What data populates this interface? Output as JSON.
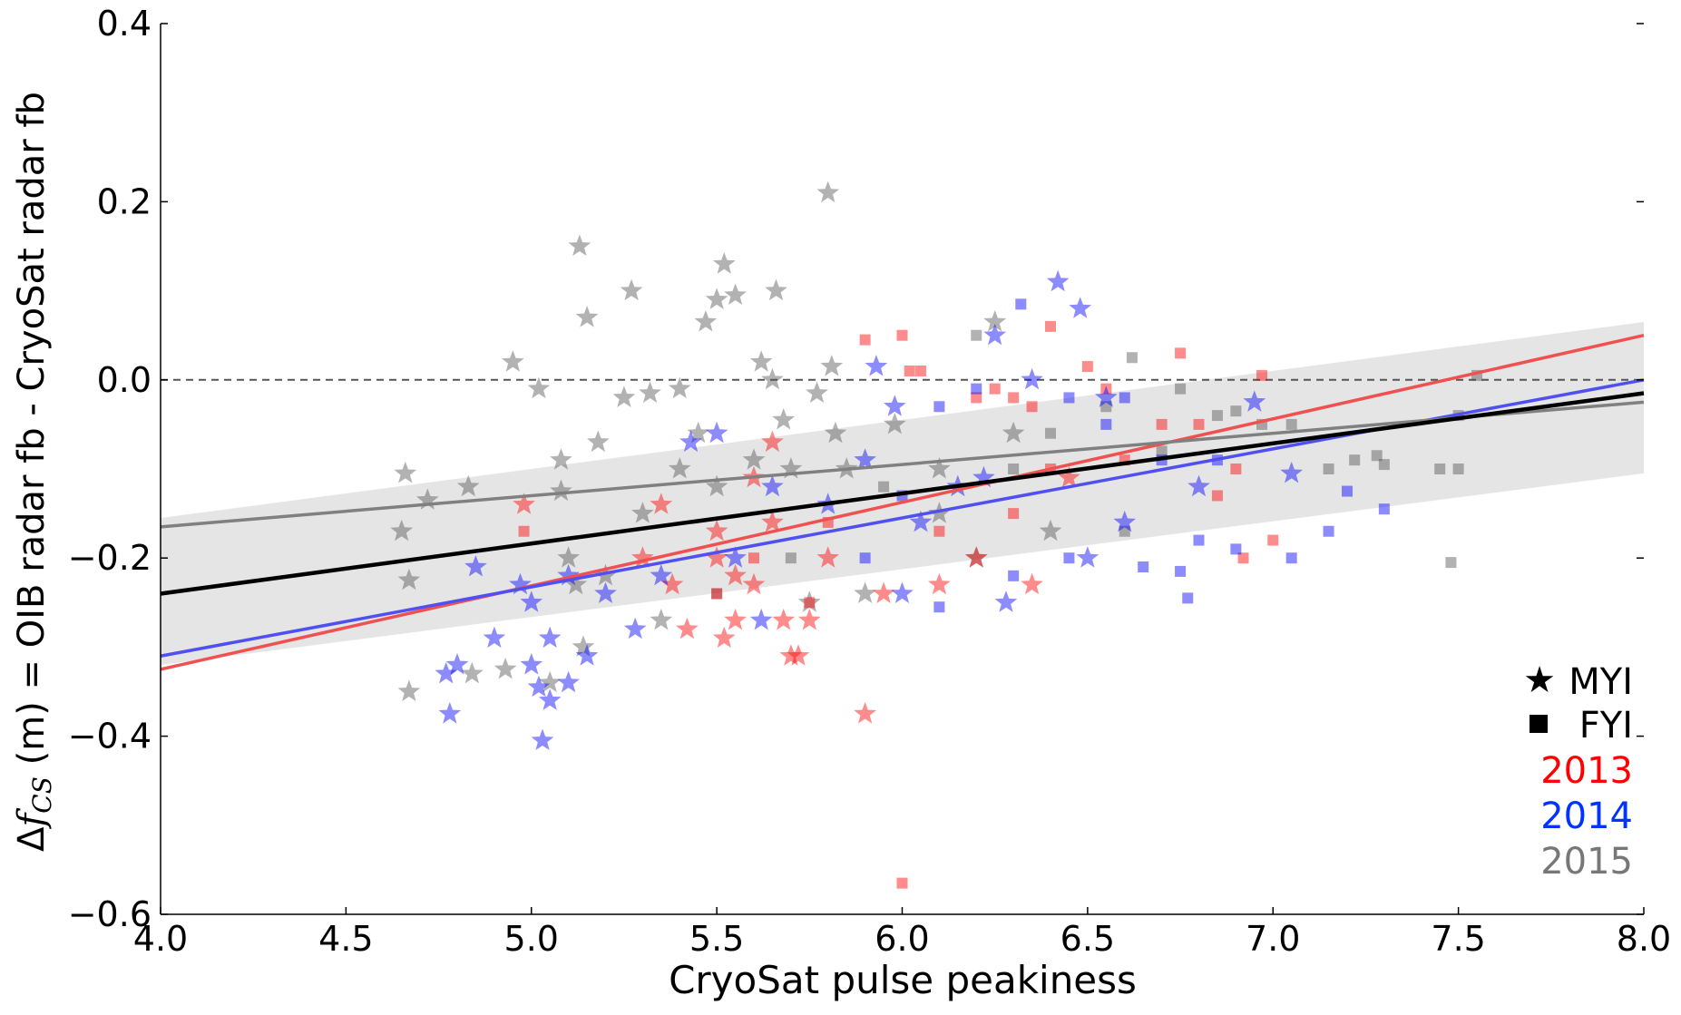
{
  "chart_data": {
    "type": "scatter",
    "title": "",
    "xlabel": "CryoSat pulse peakiness",
    "ylabel_parts": {
      "delta": "Δ",
      "f": "f",
      "sub": "CS",
      "rest": " (m) = OIB radar fb - CryoSat radar fb"
    },
    "xlim": [
      4.0,
      8.0
    ],
    "ylim": [
      -0.6,
      0.4
    ],
    "xticks": [
      "4.0",
      "4.5",
      "5.0",
      "5.5",
      "6.0",
      "6.5",
      "7.0",
      "7.5",
      "8.0"
    ],
    "yticks": [
      "0.4",
      "0.2",
      "0.0",
      "−0.2",
      "−0.4",
      "−0.6"
    ],
    "ytick_values": [
      0.4,
      0.2,
      0.0,
      -0.2,
      -0.4,
      -0.6
    ],
    "grid": false,
    "reference_line": {
      "y": 0.0,
      "style": "dashed"
    },
    "legend": {
      "placement": "bottom-right",
      "markers": [
        {
          "symbol": "star",
          "label": "MYI"
        },
        {
          "symbol": "square",
          "label": "FYI"
        }
      ],
      "years": [
        {
          "label": "2013",
          "color": "#ff0000"
        },
        {
          "label": "2014",
          "color": "#0033ff"
        },
        {
          "label": "2015",
          "color": "#777777"
        }
      ]
    },
    "fits": [
      {
        "group": "2013",
        "color": "#f05050",
        "x": [
          4.0,
          8.0
        ],
        "y": [
          -0.325,
          0.05
        ]
      },
      {
        "group": "2014",
        "color": "#5050f0",
        "x": [
          4.0,
          8.0
        ],
        "y": [
          -0.31,
          0.0
        ]
      },
      {
        "group": "2015",
        "color": "#808080",
        "x": [
          4.0,
          8.0
        ],
        "y": [
          -0.165,
          -0.025
        ]
      },
      {
        "group": "all",
        "color": "#000000",
        "x": [
          4.0,
          8.0
        ],
        "y": [
          -0.24,
          -0.015
        ]
      }
    ],
    "confidence_band": {
      "x": [
        4.0,
        8.0
      ],
      "upper": [
        -0.155,
        0.065
      ],
      "lower": [
        -0.32,
        -0.105
      ],
      "color": "#e0e0e0"
    },
    "series": [
      {
        "year": "2015",
        "ice": "MYI",
        "marker": "star",
        "color": "#555555",
        "points": [
          [
            4.66,
            -0.105
          ],
          [
            4.65,
            -0.17
          ],
          [
            4.67,
            -0.225
          ],
          [
            4.67,
            -0.35
          ],
          [
            4.72,
            -0.135
          ],
          [
            4.83,
            -0.12
          ],
          [
            4.95,
            0.02
          ],
          [
            5.02,
            -0.01
          ],
          [
            4.93,
            -0.325
          ],
          [
            4.84,
            -0.33
          ],
          [
            5.08,
            -0.09
          ],
          [
            5.08,
            -0.125
          ],
          [
            5.1,
            -0.2
          ],
          [
            5.12,
            -0.23
          ],
          [
            5.13,
            0.15
          ],
          [
            5.15,
            0.07
          ],
          [
            5.14,
            -0.3
          ],
          [
            5.18,
            -0.07
          ],
          [
            5.25,
            -0.02
          ],
          [
            5.27,
            0.1
          ],
          [
            5.32,
            -0.015
          ],
          [
            5.35,
            -0.27
          ],
          [
            5.4,
            -0.01
          ],
          [
            5.45,
            -0.06
          ],
          [
            5.47,
            0.065
          ],
          [
            5.52,
            0.13
          ],
          [
            5.5,
            0.09
          ],
          [
            5.55,
            0.095
          ],
          [
            5.62,
            0.02
          ],
          [
            5.65,
            0.0
          ],
          [
            5.66,
            0.1
          ],
          [
            5.68,
            -0.045
          ],
          [
            5.8,
            0.21
          ],
          [
            5.81,
            0.015
          ],
          [
            5.77,
            -0.015
          ],
          [
            5.82,
            -0.06
          ],
          [
            5.85,
            -0.1
          ],
          [
            5.9,
            -0.24
          ],
          [
            5.7,
            -0.1
          ],
          [
            5.6,
            -0.09
          ],
          [
            5.5,
            -0.12
          ],
          [
            5.4,
            -0.1
          ],
          [
            5.3,
            -0.15
          ],
          [
            5.2,
            -0.22
          ],
          [
            5.05,
            -0.34
          ],
          [
            5.98,
            -0.05
          ],
          [
            6.1,
            -0.1
          ],
          [
            6.2,
            -0.2
          ],
          [
            6.25,
            0.065
          ],
          [
            6.3,
            -0.06
          ],
          [
            6.4,
            -0.17
          ],
          [
            6.1,
            -0.15
          ],
          [
            5.75,
            -0.25
          ]
        ]
      },
      {
        "year": "2015",
        "ice": "FYI",
        "marker": "square",
        "color": "#555555",
        "points": [
          [
            6.2,
            0.05
          ],
          [
            6.55,
            -0.03
          ],
          [
            6.62,
            0.025
          ],
          [
            6.75,
            -0.01
          ],
          [
            6.85,
            -0.04
          ],
          [
            6.9,
            -0.035
          ],
          [
            6.97,
            -0.05
          ],
          [
            7.05,
            -0.05
          ],
          [
            7.15,
            -0.1
          ],
          [
            7.22,
            -0.09
          ],
          [
            7.28,
            -0.085
          ],
          [
            7.3,
            -0.095
          ],
          [
            7.45,
            -0.1
          ],
          [
            7.5,
            -0.1
          ],
          [
            7.48,
            -0.205
          ],
          [
            7.5,
            -0.04
          ],
          [
            7.55,
            0.005
          ],
          [
            6.7,
            -0.08
          ],
          [
            6.6,
            -0.17
          ],
          [
            6.3,
            -0.1
          ],
          [
            6.4,
            -0.06
          ],
          [
            5.95,
            -0.12
          ],
          [
            5.7,
            -0.2
          ],
          [
            5.5,
            -0.24
          ]
        ]
      },
      {
        "year": "2013",
        "ice": "MYI",
        "marker": "star",
        "color": "#ff0000",
        "points": [
          [
            4.98,
            -0.14
          ],
          [
            5.3,
            -0.2
          ],
          [
            5.35,
            -0.14
          ],
          [
            5.38,
            -0.23
          ],
          [
            5.42,
            -0.28
          ],
          [
            5.5,
            -0.2
          ],
          [
            5.52,
            -0.29
          ],
          [
            5.55,
            -0.27
          ],
          [
            5.6,
            -0.23
          ],
          [
            5.6,
            -0.11
          ],
          [
            5.65,
            -0.07
          ],
          [
            5.7,
            -0.31
          ],
          [
            5.72,
            -0.31
          ],
          [
            5.75,
            -0.27
          ],
          [
            5.8,
            -0.2
          ],
          [
            5.9,
            -0.375
          ],
          [
            5.95,
            -0.24
          ],
          [
            6.1,
            -0.23
          ],
          [
            6.2,
            -0.2
          ],
          [
            6.35,
            -0.23
          ],
          [
            5.55,
            -0.22
          ],
          [
            5.65,
            -0.16
          ],
          [
            6.45,
            -0.11
          ],
          [
            5.5,
            -0.17
          ],
          [
            5.68,
            -0.27
          ]
        ]
      },
      {
        "year": "2013",
        "ice": "FYI",
        "marker": "square",
        "color": "#ff0000",
        "points": [
          [
            4.98,
            -0.17
          ],
          [
            5.9,
            0.045
          ],
          [
            6.0,
            0.05
          ],
          [
            6.02,
            0.01
          ],
          [
            6.05,
            0.01
          ],
          [
            6.0,
            -0.565
          ],
          [
            6.2,
            -0.02
          ],
          [
            6.25,
            -0.01
          ],
          [
            6.3,
            -0.02
          ],
          [
            6.35,
            -0.03
          ],
          [
            6.4,
            0.06
          ],
          [
            6.5,
            0.015
          ],
          [
            6.55,
            -0.01
          ],
          [
            6.75,
            0.03
          ],
          [
            6.7,
            -0.05
          ],
          [
            6.8,
            -0.05
          ],
          [
            6.85,
            -0.13
          ],
          [
            6.92,
            -0.2
          ],
          [
            6.97,
            0.005
          ],
          [
            7.0,
            -0.18
          ],
          [
            6.6,
            -0.09
          ],
          [
            6.4,
            -0.1
          ],
          [
            5.8,
            -0.16
          ],
          [
            5.6,
            -0.2
          ],
          [
            5.5,
            -0.24
          ],
          [
            5.75,
            -0.25
          ],
          [
            6.1,
            -0.17
          ],
          [
            6.3,
            -0.15
          ],
          [
            6.9,
            -0.1
          ]
        ]
      },
      {
        "year": "2014",
        "ice": "MYI",
        "marker": "star",
        "color": "#0000ff",
        "points": [
          [
            4.77,
            -0.33
          ],
          [
            4.78,
            -0.375
          ],
          [
            4.8,
            -0.32
          ],
          [
            4.85,
            -0.21
          ],
          [
            4.9,
            -0.29
          ],
          [
            4.97,
            -0.23
          ],
          [
            5.0,
            -0.25
          ],
          [
            5.0,
            -0.32
          ],
          [
            5.02,
            -0.345
          ],
          [
            5.03,
            -0.405
          ],
          [
            5.05,
            -0.36
          ],
          [
            5.05,
            -0.29
          ],
          [
            5.1,
            -0.22
          ],
          [
            5.1,
            -0.34
          ],
          [
            5.15,
            -0.31
          ],
          [
            5.2,
            -0.24
          ],
          [
            5.28,
            -0.28
          ],
          [
            5.35,
            -0.22
          ],
          [
            5.43,
            -0.07
          ],
          [
            5.5,
            -0.06
          ],
          [
            5.62,
            -0.27
          ],
          [
            5.65,
            -0.12
          ],
          [
            5.8,
            -0.14
          ],
          [
            5.9,
            -0.09
          ],
          [
            5.93,
            0.015
          ],
          [
            5.98,
            -0.03
          ],
          [
            6.05,
            -0.16
          ],
          [
            6.15,
            -0.12
          ],
          [
            6.22,
            -0.11
          ],
          [
            6.25,
            0.05
          ],
          [
            6.28,
            -0.25
          ],
          [
            6.35,
            0.0
          ],
          [
            6.42,
            0.11
          ],
          [
            6.48,
            0.08
          ],
          [
            6.55,
            -0.02
          ],
          [
            6.6,
            -0.16
          ],
          [
            6.8,
            -0.12
          ],
          [
            6.95,
            -0.025
          ],
          [
            7.05,
            -0.105
          ],
          [
            6.5,
            -0.2
          ],
          [
            6.0,
            -0.24
          ],
          [
            5.55,
            -0.2
          ]
        ]
      },
      {
        "year": "2014",
        "ice": "FYI",
        "marker": "square",
        "color": "#0000ff",
        "points": [
          [
            6.32,
            0.085
          ],
          [
            6.2,
            -0.01
          ],
          [
            6.1,
            -0.03
          ],
          [
            6.45,
            -0.02
          ],
          [
            6.6,
            -0.02
          ],
          [
            6.7,
            -0.09
          ],
          [
            6.75,
            -0.215
          ],
          [
            6.77,
            -0.245
          ],
          [
            6.8,
            -0.18
          ],
          [
            6.9,
            -0.19
          ],
          [
            7.05,
            -0.2
          ],
          [
            7.15,
            -0.17
          ],
          [
            7.2,
            -0.125
          ],
          [
            7.3,
            -0.145
          ],
          [
            6.65,
            -0.21
          ],
          [
            6.45,
            -0.2
          ],
          [
            6.3,
            -0.22
          ],
          [
            6.1,
            -0.255
          ],
          [
            5.9,
            -0.2
          ],
          [
            6.55,
            -0.05
          ],
          [
            6.85,
            -0.09
          ],
          [
            6.0,
            -0.13
          ]
        ]
      }
    ]
  }
}
